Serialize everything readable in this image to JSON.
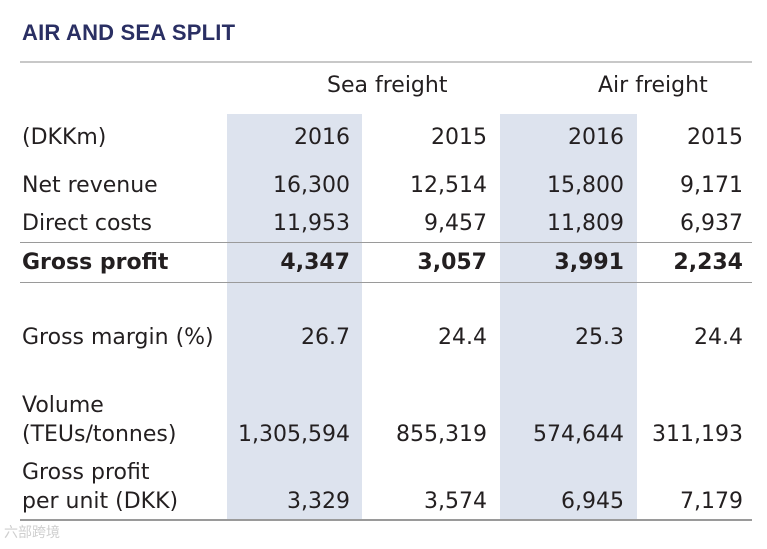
{
  "title": "AIR AND SEA SPLIT",
  "groups": {
    "sea": "Sea freight",
    "air": "Air freight"
  },
  "header": {
    "unit": "(DKKm)",
    "years": [
      "2016",
      "2015",
      "2016",
      "2015"
    ]
  },
  "rows": [
    {
      "label": "Net revenue",
      "values": [
        "16,300",
        "12,514",
        "15,800",
        "9,171"
      ]
    },
    {
      "label": "Direct costs",
      "values": [
        "11,953",
        "9,457",
        "11,809",
        "6,937"
      ]
    },
    {
      "label": "Gross profit",
      "values": [
        "4,347",
        "3,057",
        "3,991",
        "2,234"
      ]
    },
    {
      "label": "Gross margin (%)",
      "values": [
        "26.7",
        "24.4",
        "25.3",
        "24.4"
      ]
    },
    {
      "label_line1": "Volume",
      "label_line2": "(TEUs/tonnes)",
      "values": [
        "1,305,594",
        "855,319",
        "574,644",
        "311,193"
      ]
    },
    {
      "label_line1": "Gross profit",
      "label_line2": "per unit (DKK)",
      "values": [
        "3,329",
        "3,574",
        "6,945",
        "7,179"
      ]
    }
  ],
  "watermark": "六部跨境"
}
